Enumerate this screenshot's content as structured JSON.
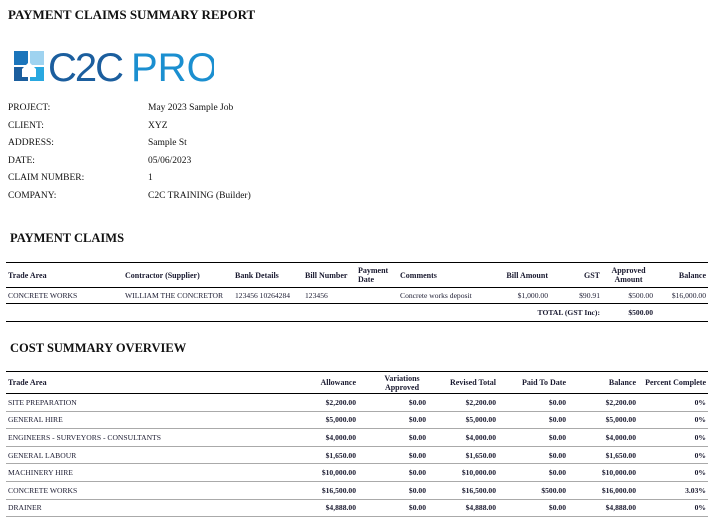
{
  "report_title": "PAYMENT CLAIMS SUMMARY REPORT",
  "logo": {
    "text": "C2CPRO",
    "colors": {
      "dark": "#1b5e9e",
      "light": "#29a8e0"
    }
  },
  "info": [
    {
      "label": "PROJECT:",
      "value": "May 2023 Sample Job"
    },
    {
      "label": "CLIENT:",
      "value": "XYZ"
    },
    {
      "label": "ADDRESS:",
      "value": "Sample St"
    },
    {
      "label": "DATE:",
      "value": "05/06/2023"
    },
    {
      "label": "CLAIM NUMBER:",
      "value": "1"
    },
    {
      "label": "COMPANY:",
      "value": "C2C TRAINING (Builder)"
    }
  ],
  "payment_claims": {
    "heading": "PAYMENT CLAIMS",
    "headers": [
      "Trade Area",
      "Contractor (Supplier)",
      "Bank Details",
      "Bill Number",
      "Payment Date",
      "Comments",
      "Bill Amount",
      "GST",
      "Approved Amount",
      "Balance"
    ],
    "rows": [
      [
        "CONCRETE WORKS",
        "WILLIAM THE CONCRETOR",
        "123456 10264284",
        "123456",
        "",
        "Concrete works deposit",
        "$1,000.00",
        "$90.91",
        "$500.00",
        "$16,000.00"
      ]
    ],
    "total_label": "TOTAL (GST Inc):",
    "total_value": "$500.00"
  },
  "cost_summary": {
    "heading": "COST SUMMARY OVERVIEW",
    "headers": [
      "Trade Area",
      "Allowance",
      "Variations Approved",
      "Revised Total",
      "Paid To Date",
      "Balance",
      "Percent Complete"
    ],
    "rows": [
      [
        "SITE PREPARATION",
        "$2,200.00",
        "$0.00",
        "$2,200.00",
        "$0.00",
        "$2,200.00",
        "0%"
      ],
      [
        "GENERAL HIRE",
        "$5,000.00",
        "$0.00",
        "$5,000.00",
        "$0.00",
        "$5,000.00",
        "0%"
      ],
      [
        "ENGINEERS - SURVEYORS - CONSULTANTS",
        "$4,000.00",
        "$0.00",
        "$4,000.00",
        "$0.00",
        "$4,000.00",
        "0%"
      ],
      [
        "GENERAL LABOUR",
        "$1,650.00",
        "$0.00",
        "$1,650.00",
        "$0.00",
        "$1,650.00",
        "0%"
      ],
      [
        "MACHINERY HIRE",
        "$10,000.00",
        "$0.00",
        "$10,000.00",
        "$0.00",
        "$10,000.00",
        "0%"
      ],
      [
        "CONCRETE WORKS",
        "$16,500.00",
        "$0.00",
        "$16,500.00",
        "$500.00",
        "$16,000.00",
        "3.03%"
      ],
      [
        "DRAINER",
        "$4,888.00",
        "$0.00",
        "$4,888.00",
        "$0.00",
        "$4,888.00",
        "0%"
      ]
    ]
  }
}
